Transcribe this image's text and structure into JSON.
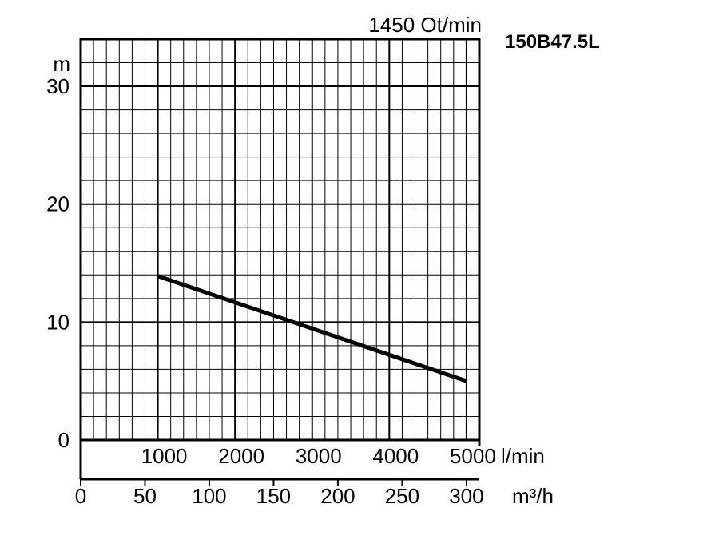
{
  "chart_data": {
    "type": "line",
    "title": "1450 Ot/min",
    "model": "150B47.5L",
    "ylabel": "m",
    "ylim": [
      0,
      34
    ],
    "yticks": [
      "0",
      "10",
      "20",
      "30"
    ],
    "x_lmin": {
      "unit": "l/min",
      "ticks": [
        "1000",
        "2000",
        "3000",
        "4000",
        "5000"
      ]
    },
    "x_m3h": {
      "unit": "m³/h",
      "range": [
        0,
        310
      ],
      "ticks": [
        "0",
        "50",
        "100",
        "150",
        "200",
        "250",
        "300"
      ]
    },
    "grid": true,
    "series": [
      {
        "x_m3h": [
          60,
          300
        ],
        "y": [
          13.9,
          5.0
        ]
      }
    ],
    "colors": {
      "line": "#000000",
      "grid": "#000000",
      "background": "#ffffff"
    }
  }
}
